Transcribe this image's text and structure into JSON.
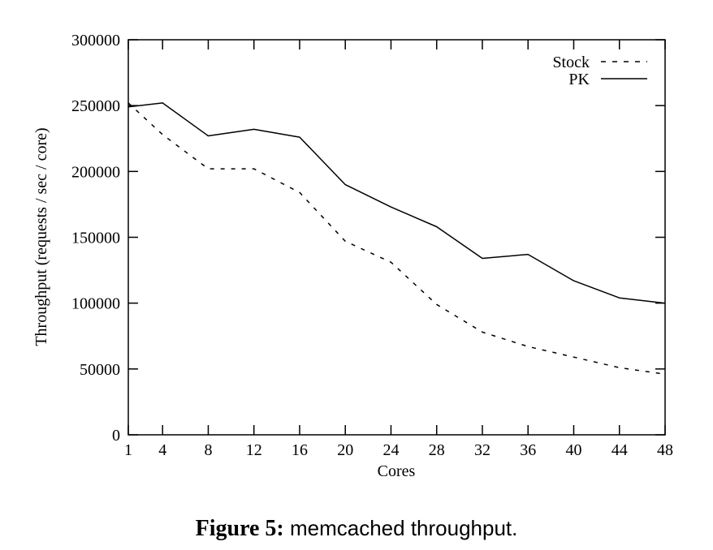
{
  "chart_data": {
    "type": "line",
    "xlabel": "Cores",
    "ylabel": "Throughput (requests / sec / core)",
    "xlim": [
      1,
      48
    ],
    "ylim": [
      0,
      300000
    ],
    "x_ticks": [
      1,
      4,
      8,
      12,
      16,
      20,
      24,
      28,
      32,
      36,
      40,
      44,
      48
    ],
    "y_ticks": [
      0,
      50000,
      100000,
      150000,
      200000,
      250000,
      300000
    ],
    "grid": false,
    "legend_position": "top-right",
    "series": [
      {
        "name": "Stock",
        "style": "dashed",
        "x": [
          1,
          4,
          8,
          12,
          16,
          20,
          24,
          28,
          32,
          36,
          40,
          44,
          48
        ],
        "y": [
          252000,
          228000,
          202000,
          202000,
          184000,
          147000,
          131000,
          99000,
          78000,
          67000,
          59000,
          51000,
          46000
        ]
      },
      {
        "name": "PK",
        "style": "solid",
        "x": [
          1,
          4,
          8,
          12,
          16,
          20,
          24,
          28,
          32,
          36,
          40,
          44,
          48
        ],
        "y": [
          249000,
          252000,
          227000,
          232000,
          226000,
          190000,
          173000,
          158000,
          134000,
          137000,
          117000,
          104000,
          100000
        ]
      }
    ]
  },
  "caption": {
    "label": "Figure 5",
    "separator": ":",
    "text": " memcached throughput."
  }
}
